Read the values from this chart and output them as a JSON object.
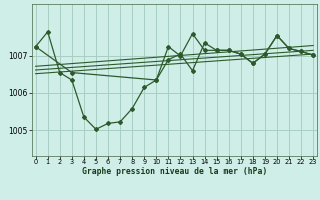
{
  "title": "Graphe pression niveau de la mer (hPa)",
  "background_color": "#d0eee8",
  "grid_color": "#a8cfc4",
  "line_color": "#2d5a2d",
  "x_ticks": [
    0,
    1,
    2,
    3,
    4,
    5,
    6,
    7,
    8,
    9,
    10,
    11,
    12,
    13,
    14,
    15,
    16,
    17,
    18,
    19,
    20,
    21,
    22,
    23
  ],
  "y_ticks": [
    1005,
    1006,
    1007
  ],
  "ylim": [
    1004.3,
    1008.4
  ],
  "xlim": [
    -0.3,
    23.3
  ],
  "series1_x": [
    0,
    1,
    2,
    3,
    4,
    5,
    6,
    7,
    8,
    9,
    10,
    11,
    12,
    13,
    14,
    15,
    16,
    17,
    18,
    19,
    20,
    21,
    22,
    23
  ],
  "series1_y": [
    1007.25,
    1007.65,
    1006.55,
    1006.35,
    1005.35,
    1005.02,
    1005.18,
    1005.22,
    1005.58,
    1006.15,
    1006.35,
    1006.9,
    1007.05,
    1006.6,
    1007.35,
    1007.15,
    1007.15,
    1007.05,
    1006.8,
    1007.05,
    1007.55,
    1007.2,
    1007.12,
    1007.02
  ],
  "trend1_x": [
    0,
    23
  ],
  "trend1_y": [
    1006.62,
    1007.15
  ],
  "trend2_x": [
    0,
    23
  ],
  "trend2_y": [
    1006.72,
    1007.28
  ],
  "trend3_x": [
    0,
    23
  ],
  "trend3_y": [
    1006.52,
    1007.05
  ],
  "series2_x": [
    0,
    3,
    10,
    11,
    12,
    13,
    14,
    15,
    16,
    17,
    18,
    19,
    20,
    21,
    22,
    23
  ],
  "series2_y": [
    1007.25,
    1006.55,
    1006.35,
    1007.25,
    1007.0,
    1007.6,
    1007.15,
    1007.15,
    1007.15,
    1007.05,
    1006.8,
    1007.05,
    1007.55,
    1007.2,
    1007.12,
    1007.02
  ]
}
